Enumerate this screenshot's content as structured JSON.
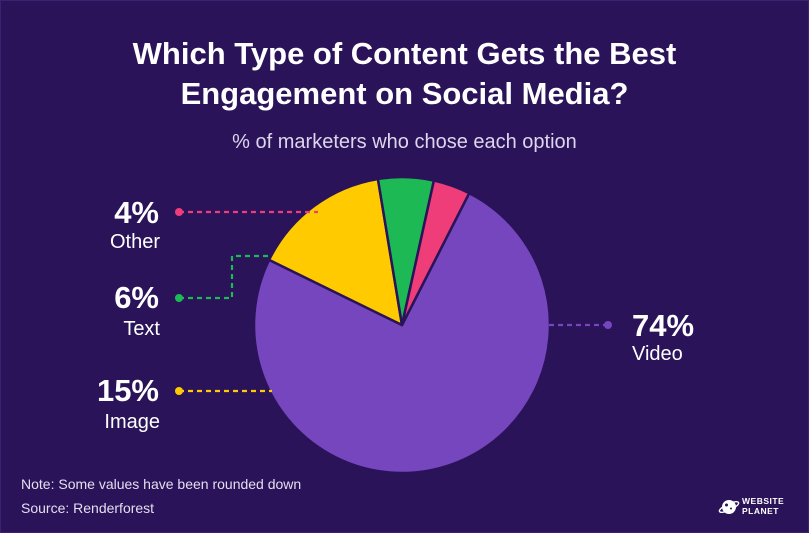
{
  "title_line1": "Which Type of Content Gets the Best",
  "title_line2": "Engagement on Social Media?",
  "subtitle": "% of marketers who chose each option",
  "note": "Note: Some values have been rounded down",
  "source": "Source: Renderforest",
  "logo": {
    "line1": "WEBSITE",
    "line2": "PLANET",
    "icon": "planet-icon"
  },
  "colors": {
    "background": "#2a1359",
    "Video": "#7546bd",
    "Image": "#ffcb00",
    "Text": "#1db954",
    "Other": "#ef3d7a"
  },
  "chart_data": {
    "type": "pie",
    "labels": [
      "Video",
      "Image",
      "Text",
      "Other"
    ],
    "values": [
      74,
      15,
      6,
      4
    ],
    "value_labels": [
      "74%",
      "15%",
      "6%",
      "4%"
    ],
    "legend": "none",
    "grid": false
  }
}
